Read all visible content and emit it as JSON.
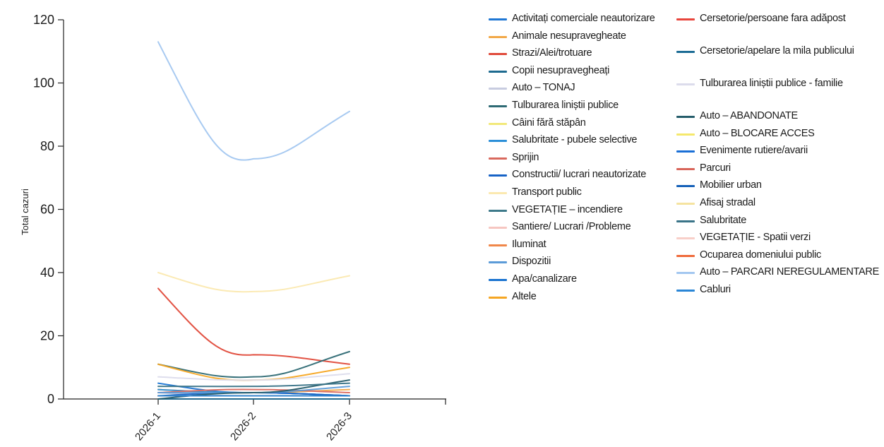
{
  "chart_data": {
    "type": "line",
    "title": "",
    "xlabel": "",
    "ylabel": "Total cazuri",
    "ylim": [
      0,
      120
    ],
    "yticks": [
      0,
      20,
      40,
      60,
      80,
      100,
      120
    ],
    "x": [
      "2026-1",
      "2026-2",
      "2026-3"
    ],
    "legend_position": "right",
    "series": [
      {
        "name": "Activitați comerciale neautorizare",
        "color": "#1f77d4",
        "values": [
          5,
          2,
          1
        ]
      },
      {
        "name": "Animale nesupravegheate",
        "color": "#f2a848",
        "values": [
          3,
          2,
          3
        ]
      },
      {
        "name": "Strazi/Alei/trotuare",
        "color": "#e04a3a",
        "values": [
          35,
          14,
          11
        ]
      },
      {
        "name": "Copii nesupravegheați",
        "color": "#1d6a8f",
        "values": [
          0,
          0,
          0
        ]
      },
      {
        "name": "Auto – TONAJ",
        "color": "#c8cce0",
        "values": [
          2,
          1,
          1
        ]
      },
      {
        "name": "Tulburarea liniștii publice",
        "color": "#2e6a74",
        "values": [
          11,
          7,
          15
        ]
      },
      {
        "name": "Câini fără stăpân",
        "color": "#f2e97a",
        "values": [
          1,
          1,
          1
        ]
      },
      {
        "name": "Salubritate - pubele selective",
        "color": "#2c8fd8",
        "values": [
          3,
          2,
          1
        ]
      },
      {
        "name": "Sprijin",
        "color": "#d9695e",
        "values": [
          2,
          3,
          2
        ]
      },
      {
        "name": "Constructii/ lucrari neautorizate",
        "color": "#1763c6",
        "values": [
          1,
          2,
          1
        ]
      },
      {
        "name": "Transport public",
        "color": "#fbe9b0",
        "values": [
          40,
          34,
          39
        ]
      },
      {
        "name": "VEGETAȚIE – incendiere",
        "color": "#3e7a8a",
        "values": [
          1,
          1,
          1
        ]
      },
      {
        "name": "Santiere/ Lucrari /Probleme",
        "color": "#f6c6c1",
        "values": [
          1,
          1,
          1
        ]
      },
      {
        "name": "Iluminat",
        "color": "#f0874a",
        "values": [
          1,
          1,
          1
        ]
      },
      {
        "name": "Dispozitii",
        "color": "#5b9bd8",
        "values": [
          2,
          2,
          4
        ]
      },
      {
        "name": "Apa/canalizare",
        "color": "#1a73d0",
        "values": [
          1,
          1,
          1
        ]
      },
      {
        "name": "Altele",
        "color": "#f5a623",
        "values": [
          11,
          6,
          10
        ]
      },
      {
        "name": "Cersetorie/persoane fara adăpost",
        "color": "#e8453c",
        "values": [
          1,
          1,
          1
        ]
      },
      {
        "name": "Cersetorie/apelare la mila publicului",
        "color": "#1c6c95",
        "values": [
          1,
          1,
          1
        ]
      },
      {
        "name": "Tulburarea liniștii publice - familie",
        "color": "#dcdcec",
        "values": [
          7,
          6,
          8
        ]
      },
      {
        "name": "Auto – ABANDONATE",
        "color": "#245c6a",
        "values": [
          0,
          2,
          6
        ]
      },
      {
        "name": "Auto – BLOCARE ACCES",
        "color": "#f5e86c",
        "values": [
          1,
          1,
          1
        ]
      },
      {
        "name": "Evenimente rutiere/avarii",
        "color": "#1a6fd6",
        "values": [
          1,
          1,
          1
        ]
      },
      {
        "name": "Parcuri",
        "color": "#d8655a",
        "values": [
          1,
          1,
          1
        ]
      },
      {
        "name": "Mobilier urban",
        "color": "#1560b8",
        "values": [
          1,
          1,
          1
        ]
      },
      {
        "name": "Afisaj stradal",
        "color": "#f5e3a0",
        "values": [
          1,
          1,
          1
        ]
      },
      {
        "name": "Salubritate",
        "color": "#3a7488",
        "values": [
          4,
          4,
          5
        ]
      },
      {
        "name": "VEGETAȚIE - Spatii verzi",
        "color": "#f8cfc9",
        "values": [
          1,
          1,
          1
        ]
      },
      {
        "name": "Ocuparea domeniului public",
        "color": "#ef6a3a",
        "values": [
          1,
          1,
          1
        ]
      },
      {
        "name": "Auto – PARCARI NEREGULAMENTARE",
        "color": "#a3c7f0",
        "values": [
          113,
          76,
          91
        ]
      },
      {
        "name": "Cabluri",
        "color": "#2a86d6",
        "values": [
          1,
          1,
          1
        ]
      }
    ]
  },
  "legend": {
    "col1": [
      "Activitați comerciale neautorizare",
      "Animale nesupravegheate",
      "Strazi/Alei/trotuare",
      "Copii nesupravegheați",
      "Auto – TONAJ",
      "Tulburarea liniștii publice",
      "Câini fără stăpân",
      "Salubritate - pubele selective",
      "Sprijin",
      "Constructii/ lucrari neautorizate",
      "Transport public",
      "VEGETAȚIE – incendiere",
      "Santiere/ Lucrari /Probleme",
      "Iluminat",
      "Dispozitii",
      "Apa/canalizare",
      "Altele"
    ],
    "col2": [
      "Cersetorie/persoane fara adăpost",
      "Cersetorie/apelare la mila publicului",
      "Tulburarea liniștii publice - familie",
      "Auto – ABANDONATE",
      "Auto – BLOCARE ACCES",
      "Evenimente rutiere/avarii",
      "Parcuri",
      "Mobilier urban",
      "Afisaj stradal",
      "Salubritate",
      "VEGETAȚIE - Spatii verzi",
      "Ocuparea domeniului public",
      "Auto – PARCARI NEREGULAMENTARE",
      "Cabluri"
    ]
  }
}
